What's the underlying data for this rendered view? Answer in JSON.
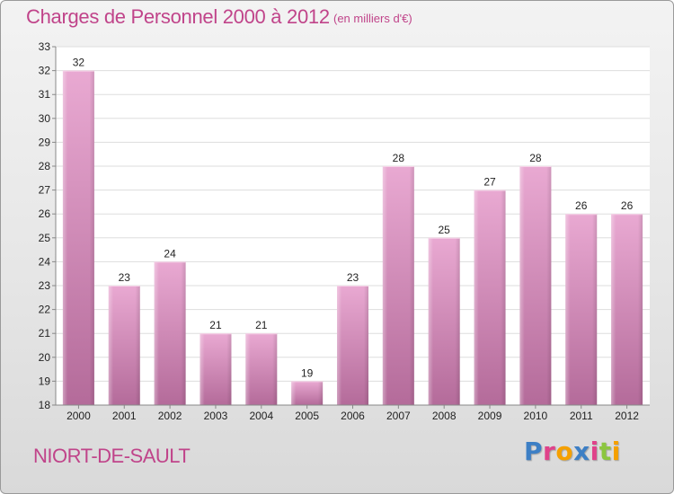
{
  "header": {
    "title": "Charges de Personnel 2000 à 2012",
    "subtitle": "(en milliers d'€)"
  },
  "footer": {
    "commune": "NIORT-DE-SAULT",
    "logo_letters": [
      "P",
      "r",
      "o",
      "x",
      "i",
      "t",
      "i"
    ],
    "logo_colors": [
      "#3d7fc5",
      "#e0428a",
      "#f5a000",
      "#3d7fc5",
      "#e0428a",
      "#8cc63f",
      "#f5a000"
    ]
  },
  "colors": {
    "bar_top": "#e9a9d2",
    "bar_bottom": "#b46b9a",
    "title": "#c0448a"
  },
  "chart_data": {
    "type": "bar",
    "categories": [
      "2000",
      "2001",
      "2002",
      "2003",
      "2004",
      "2005",
      "2006",
      "2007",
      "2008",
      "2009",
      "2010",
      "2011",
      "2012"
    ],
    "values": [
      32,
      23,
      24,
      21,
      21,
      19,
      23,
      28,
      25,
      27,
      28,
      26,
      26
    ],
    "ylim": [
      18,
      33
    ],
    "yticks": [
      18,
      19,
      20,
      21,
      22,
      23,
      24,
      25,
      26,
      27,
      28,
      29,
      30,
      31,
      32,
      33
    ],
    "grid": true,
    "data_labels": true
  }
}
